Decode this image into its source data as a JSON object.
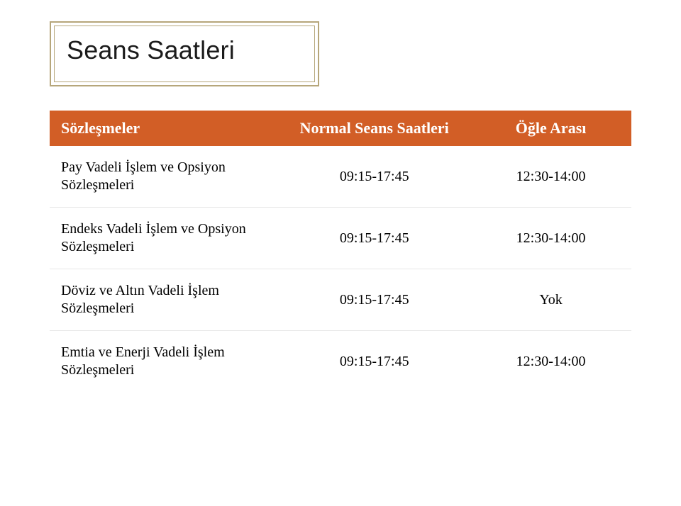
{
  "title": "Seans Saatleri",
  "table": {
    "header_bg": "#d25e26",
    "header_fg": "#ffffff",
    "row_border": "#e8e8e8",
    "columns": [
      {
        "key": "sozlesmeler",
        "label": "Sözleşmeler",
        "width_pct": 40,
        "align": "left"
      },
      {
        "key": "normal",
        "label": "Normal Seans Saatleri",
        "width_pct": 33,
        "align": "center"
      },
      {
        "key": "ogle",
        "label": "Öğle Arası",
        "width_pct": 27,
        "align": "center"
      }
    ],
    "rows": [
      {
        "sozlesmeler": "Pay Vadeli İşlem ve Opsiyon Sözleşmeleri",
        "normal": "09:15-17:45",
        "ogle": "12:30-14:00"
      },
      {
        "sozlesmeler": "Endeks Vadeli İşlem ve Opsiyon Sözleşmeleri",
        "normal": "09:15-17:45",
        "ogle": "12:30-14:00"
      },
      {
        "sozlesmeler": "Döviz ve Altın Vadeli İşlem Sözleşmeleri",
        "normal": "09:15-17:45",
        "ogle": "Yok"
      },
      {
        "sozlesmeler": "Emtia ve Enerji Vadeli İşlem Sözleşmeleri",
        "normal": "09:15-17:45",
        "ogle": "12:30-14:00"
      }
    ]
  },
  "fonts": {
    "title_family": "Arial, Helvetica, sans-serif",
    "title_size_pt": 27,
    "header_size_pt": 17,
    "body_size_pt": 15
  },
  "colors": {
    "title_border": "#b6a67a",
    "background": "#ffffff",
    "text": "#000000"
  }
}
